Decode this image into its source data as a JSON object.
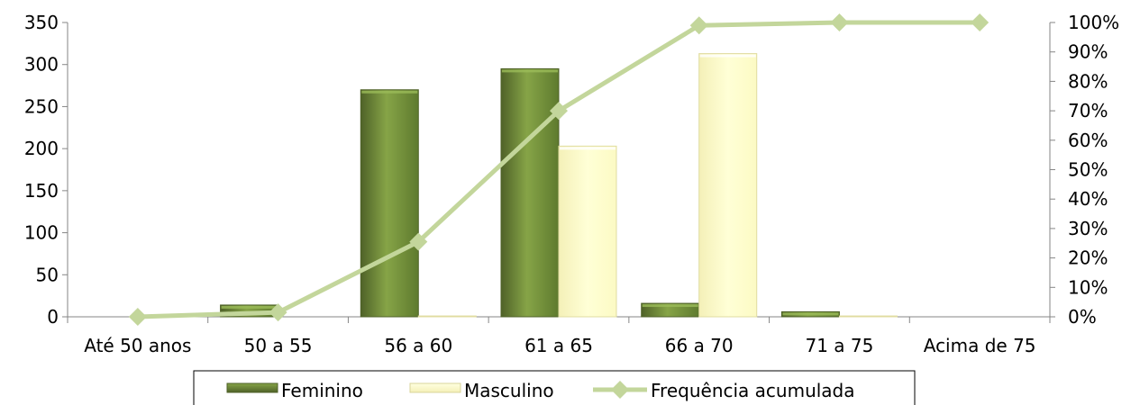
{
  "chart_data": {
    "type": "bar",
    "categories": [
      "Até 50 anos",
      "50 a 55",
      "56 a 60",
      "61 a 65",
      "66 a 70",
      "71 a 75",
      "Acima de 75"
    ],
    "series": [
      {
        "name": "Feminino",
        "type": "bar",
        "axis": "left",
        "values": [
          0,
          14,
          270,
          295,
          16,
          6,
          0
        ],
        "color": "#77933c"
      },
      {
        "name": "Masculino",
        "type": "bar",
        "axis": "left",
        "values": [
          0,
          0,
          1,
          203,
          313,
          1,
          0
        ],
        "color": "#ffffcc"
      },
      {
        "name": "Frequência acumulada",
        "type": "line",
        "axis": "right",
        "values": [
          0,
          1.5,
          25.5,
          70,
          99,
          100,
          100
        ],
        "color": "#c3d69b",
        "marker": "diamond"
      }
    ],
    "yleft": {
      "min": 0,
      "max": 350,
      "ticks": [
        0,
        50,
        100,
        150,
        200,
        250,
        300,
        350
      ],
      "labels": [
        "0",
        "50",
        "100",
        "150",
        "200",
        "250",
        "300",
        "350"
      ]
    },
    "yright": {
      "min": 0,
      "max": 100,
      "ticks": [
        0,
        10,
        20,
        30,
        40,
        50,
        60,
        70,
        80,
        90,
        100
      ],
      "labels": [
        "0%",
        "10%",
        "20%",
        "30%",
        "40%",
        "50%",
        "60%",
        "70%",
        "80%",
        "90%",
        "100%"
      ]
    },
    "grid": false,
    "legend": "bottom"
  },
  "legend": {
    "feminino": "Feminino",
    "masculino": "Masculino",
    "frequencia": "Frequência acumulada"
  }
}
